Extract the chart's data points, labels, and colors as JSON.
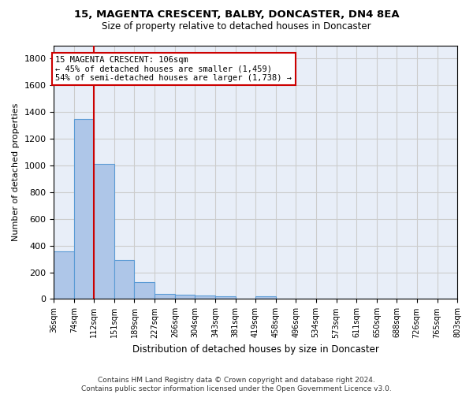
{
  "title": "15, MAGENTA CRESCENT, BALBY, DONCASTER, DN4 8EA",
  "subtitle": "Size of property relative to detached houses in Doncaster",
  "xlabel": "Distribution of detached houses by size in Doncaster",
  "ylabel": "Number of detached properties",
  "bin_labels": [
    "36sqm",
    "74sqm",
    "112sqm",
    "151sqm",
    "189sqm",
    "227sqm",
    "266sqm",
    "304sqm",
    "343sqm",
    "381sqm",
    "419sqm",
    "458sqm",
    "496sqm",
    "534sqm",
    "573sqm",
    "611sqm",
    "650sqm",
    "688sqm",
    "726sqm",
    "765sqm",
    "803sqm"
  ],
  "bin_edges": [
    36,
    74,
    112,
    151,
    189,
    227,
    266,
    304,
    343,
    381,
    419,
    458,
    496,
    534,
    573,
    611,
    650,
    688,
    726,
    765,
    803
  ],
  "bar_heights": [
    355,
    1350,
    1010,
    290,
    125,
    40,
    35,
    25,
    20,
    0,
    20,
    0,
    0,
    0,
    0,
    0,
    0,
    0,
    0,
    0
  ],
  "bar_color": "#aec6e8",
  "bar_edge_color": "#5b9bd5",
  "property_line_x": 112,
  "annotation_text_line1": "15 MAGENTA CRESCENT: 106sqm",
  "annotation_text_line2": "← 45% of detached houses are smaller (1,459)",
  "annotation_text_line3": "54% of semi-detached houses are larger (1,738) →",
  "annotation_box_color": "#ffffff",
  "annotation_box_edge_color": "#cc0000",
  "vline_color": "#cc0000",
  "ylim": [
    0,
    1900
  ],
  "yticks": [
    0,
    200,
    400,
    600,
    800,
    1000,
    1200,
    1400,
    1600,
    1800
  ],
  "grid_color": "#cccccc",
  "background_color": "#e8eef8",
  "footer_line1": "Contains HM Land Registry data © Crown copyright and database right 2024.",
  "footer_line2": "Contains public sector information licensed under the Open Government Licence v3.0."
}
